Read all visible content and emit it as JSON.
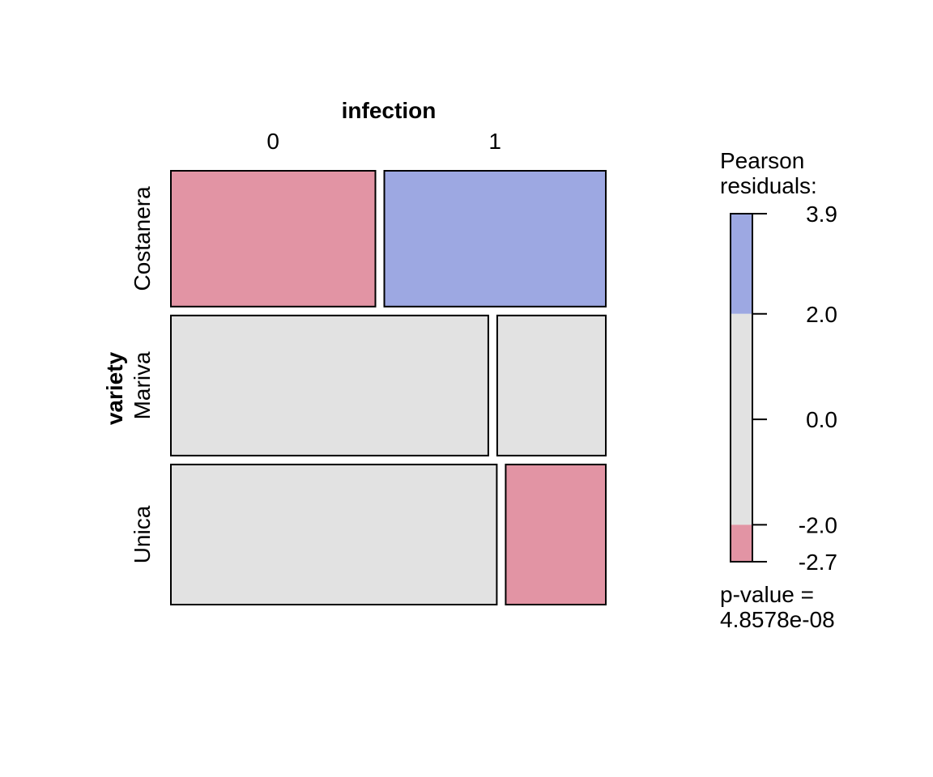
{
  "chart_data": {
    "type": "mosaic",
    "col_variable": "infection",
    "row_variable": "variety",
    "col_categories": [
      "0",
      "1"
    ],
    "row_categories": [
      "Costanera",
      "Mariva",
      "Unica"
    ],
    "row_proportions": [
      0.32,
      0.33,
      0.33
    ],
    "cells": [
      {
        "row": "Costanera",
        "col": "0",
        "proportion_in_row": 0.48,
        "shading": "negative"
      },
      {
        "row": "Costanera",
        "col": "1",
        "proportion_in_row": 0.52,
        "shading": "positive"
      },
      {
        "row": "Mariva",
        "col": "0",
        "proportion_in_row": 0.745,
        "shading": "neutral"
      },
      {
        "row": "Mariva",
        "col": "1",
        "proportion_in_row": 0.255,
        "shading": "neutral"
      },
      {
        "row": "Unica",
        "col": "0",
        "proportion_in_row": 0.765,
        "shading": "neutral"
      },
      {
        "row": "Unica",
        "col": "1",
        "proportion_in_row": 0.235,
        "shading": "negative"
      }
    ],
    "legend": {
      "title_lines": [
        "Pearson",
        "residuals:"
      ],
      "min": -2.7,
      "max": 3.9,
      "ticks": [
        "3.9",
        "2.0",
        "0.0",
        "-2.0",
        "-2.7"
      ],
      "tick_values": [
        3.9,
        2.0,
        0.0,
        -2.0,
        -2.7
      ],
      "thresholds": [
        -2.0,
        2.0
      ],
      "pvalue_lines": [
        "p-value =",
        "4.8578e-08"
      ]
    },
    "colors": {
      "positive": "#9da8e2",
      "neutral": "#e2e2e2",
      "negative": "#e294a4",
      "border": "#000000"
    }
  }
}
